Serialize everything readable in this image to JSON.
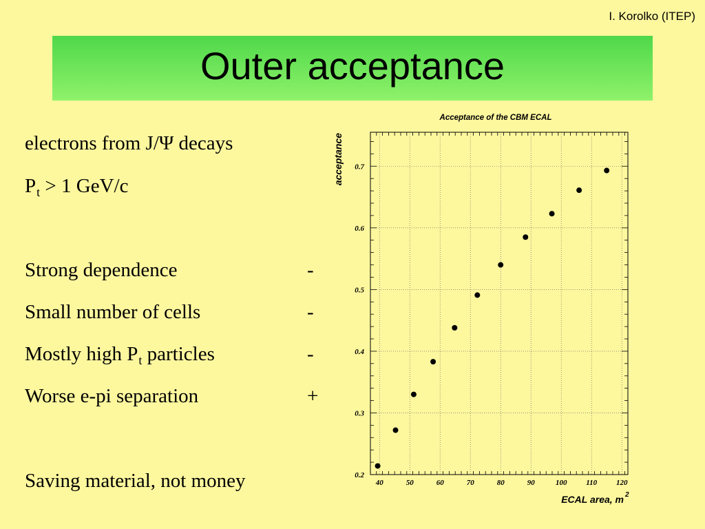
{
  "header": {
    "author": "I. Korolko (ITEP)"
  },
  "slide": {
    "title": "Outer acceptance"
  },
  "text": {
    "line1": "electrons from J/Ψ decays",
    "line2_main": "P",
    "line2_sub": "t",
    "line2_rest": " > 1 GeV/c",
    "item1": "Strong dependence",
    "item1_sign": "-",
    "item2": "Small number of cells",
    "item2_sign": "-",
    "item3_main": "Mostly high P",
    "item3_sub": "t",
    "item3_rest": " particles",
    "item3_sign": "-",
    "item4": "Worse e-pi separation",
    "item4_sign": "+",
    "footer": "Saving material, not money"
  },
  "chart_data": {
    "type": "scatter",
    "title": "Acceptance of the CBM ECAL",
    "xlabel": "ECAL area, m",
    "xlabel_sup": "2",
    "ylabel": "acceptance",
    "xlim": [
      37,
      122
    ],
    "ylim": [
      0.2,
      0.755
    ],
    "x_ticks": [
      40,
      50,
      60,
      70,
      80,
      90,
      100,
      110,
      120
    ],
    "y_ticks": [
      0.2,
      0.3,
      0.4,
      0.5,
      0.6,
      0.7
    ],
    "y_tick_labels": [
      "0.2",
      "0.3",
      "0.4",
      "0.5",
      "0.6",
      "0.7"
    ],
    "grid": true,
    "points": [
      {
        "x": 39.4,
        "y": 0.214
      },
      {
        "x": 45.3,
        "y": 0.272
      },
      {
        "x": 51.3,
        "y": 0.33
      },
      {
        "x": 57.7,
        "y": 0.383
      },
      {
        "x": 64.8,
        "y": 0.438
      },
      {
        "x": 72.3,
        "y": 0.491
      },
      {
        "x": 80.0,
        "y": 0.54
      },
      {
        "x": 88.2,
        "y": 0.585
      },
      {
        "x": 96.9,
        "y": 0.623
      },
      {
        "x": 105.9,
        "y": 0.661
      },
      {
        "x": 115.0,
        "y": 0.693
      }
    ],
    "marker_color": "#000000"
  }
}
